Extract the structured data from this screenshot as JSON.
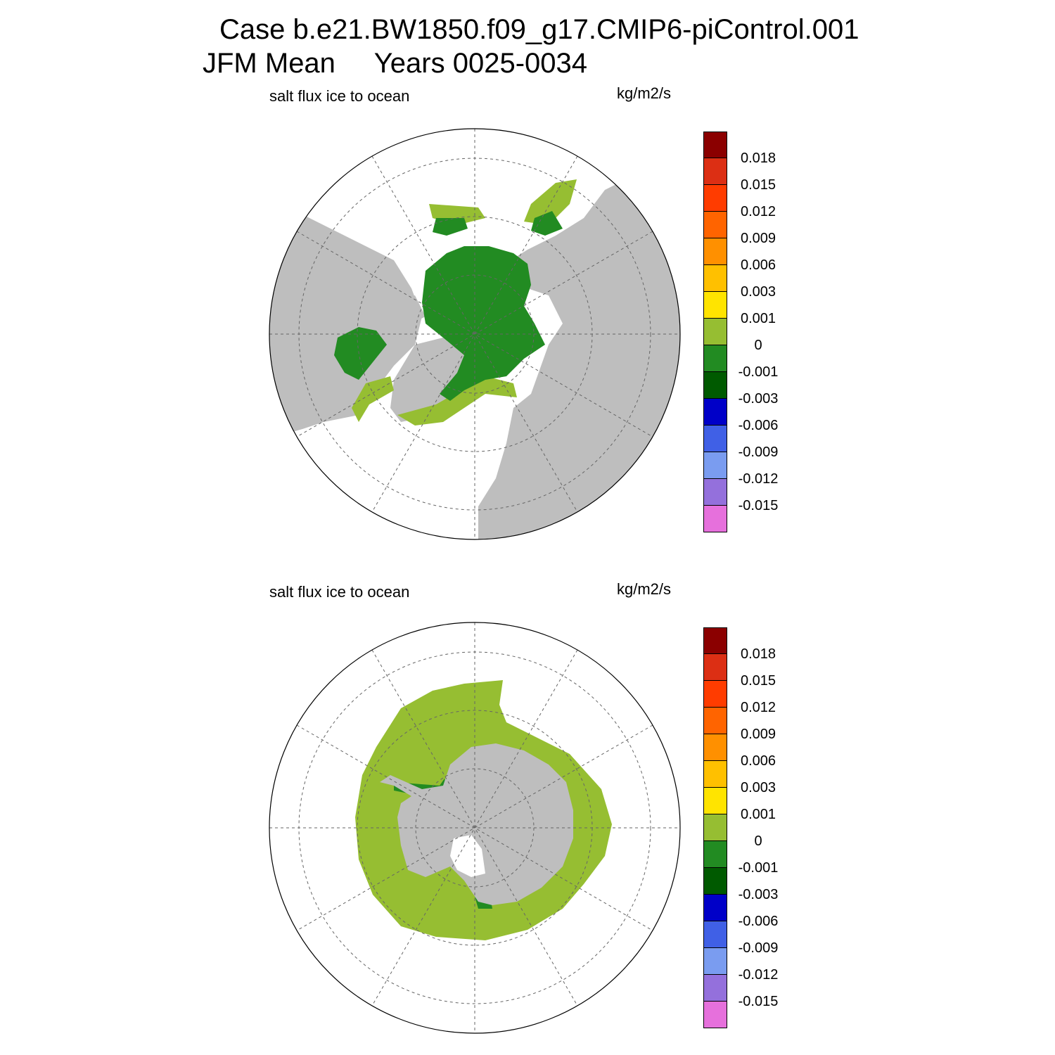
{
  "figure": {
    "title_line1": "Case b.e21.BW1850.f09_g17.CMIP6-piControl.001",
    "title_line2": "JFM Mean     Years 0025-0034"
  },
  "panels": [
    {
      "id": "north",
      "hemisphere": "north-polar-stereographic",
      "left_label": "salt flux ice to ocean",
      "units": "kg/m2/s"
    },
    {
      "id": "south",
      "hemisphere": "south-polar-stereographic",
      "left_label": "salt flux ice to ocean",
      "units": "kg/m2/s"
    }
  ],
  "colorbar": {
    "colors": [
      "#8b0000",
      "#dc2f14",
      "#ff3c00",
      "#ff6400",
      "#ff9000",
      "#ffc000",
      "#ffe400",
      "#96be32",
      "#228b22",
      "#005a00",
      "#0000c8",
      "#4060e6",
      "#7a9cf0",
      "#9470dc",
      "#e670dc"
    ],
    "labels": [
      "0.018",
      "0.015",
      "0.012",
      "0.009",
      "0.006",
      "0.003",
      "0.001",
      "0",
      "-0.001",
      "-0.003",
      "-0.006",
      "-0.009",
      "-0.012",
      "-0.015"
    ]
  },
  "map_colors": {
    "land": "#bebebe",
    "ocean": "#ffffff",
    "ice_main": "#228b22",
    "ice_edge": "#96be32"
  }
}
